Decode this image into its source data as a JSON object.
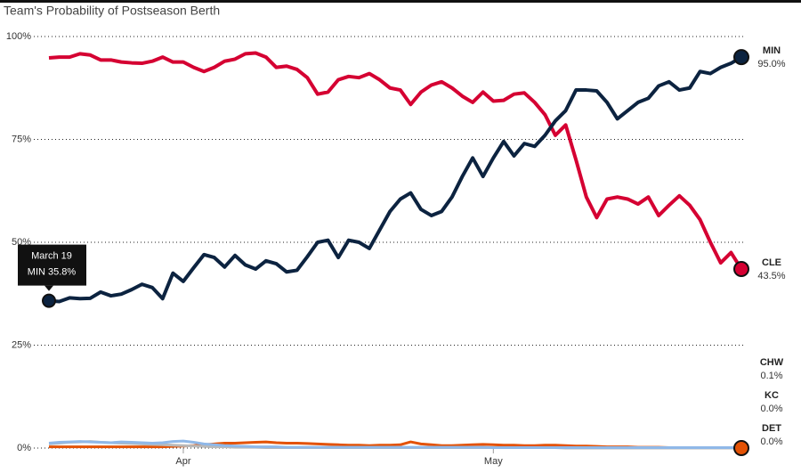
{
  "chart_data": {
    "type": "line",
    "title": "Team's Probability of Postseason Berth",
    "categories": [
      null,
      null,
      null,
      null,
      null,
      null,
      null,
      null,
      null,
      null,
      null,
      null,
      null,
      "Apr",
      null,
      null,
      null,
      null,
      null,
      null,
      null,
      null,
      null,
      null,
      null,
      null,
      null,
      null,
      null,
      null,
      null,
      null,
      null,
      null,
      null,
      null,
      null,
      null,
      null,
      null,
      null,
      null,
      null,
      "May",
      null,
      null,
      null,
      null,
      null,
      null,
      null,
      null,
      null,
      null,
      null,
      null,
      null,
      null,
      null,
      null,
      null,
      null,
      null,
      null,
      null,
      null,
      null,
      null
    ],
    "ylim": [
      0,
      100
    ],
    "yticks": [
      {
        "value": 0,
        "label": "0%"
      },
      {
        "value": 25,
        "label": "25%"
      },
      {
        "value": 50,
        "label": "50%"
      },
      {
        "value": 75,
        "label": "75%"
      },
      {
        "value": 100,
        "label": "100%"
      }
    ],
    "grid": true,
    "tooltip": {
      "title": "March 19",
      "text": "MIN 35.8%"
    },
    "series": [
      {
        "name": "MIN",
        "color": "#0c2340",
        "end_label": "95.0%",
        "marker": true,
        "values": [
          35.8,
          35.6,
          36.5,
          36.3,
          36.4,
          37.9,
          37.0,
          37.4,
          38.5,
          39.8,
          39.0,
          36.3,
          42.5,
          40.5,
          43.8,
          47.0,
          46.3,
          44.0,
          46.8,
          44.5,
          43.5,
          45.5,
          44.8,
          42.8,
          43.2,
          46.5,
          50.0,
          50.5,
          46.3,
          50.5,
          50.0,
          48.5,
          53.0,
          57.5,
          60.5,
          62.0,
          58.0,
          56.5,
          57.5,
          61.0,
          66.0,
          70.5,
          66.0,
          70.5,
          74.5,
          71.0,
          74.0,
          73.3,
          76.0,
          79.5,
          82.0,
          87.0,
          87.0,
          86.8,
          84.0,
          80.0,
          82.0,
          84.0,
          85.0,
          88.0,
          89.0,
          87.0,
          87.5,
          91.5,
          91.0,
          92.5,
          93.5,
          95.0
        ]
      },
      {
        "name": "CLE",
        "color": "#d50032",
        "end_label": "43.5%",
        "marker": true,
        "values": [
          94.8,
          95.0,
          95.0,
          95.8,
          95.5,
          94.3,
          94.3,
          93.8,
          93.6,
          93.5,
          94.0,
          95.0,
          93.8,
          93.8,
          92.5,
          91.5,
          92.5,
          94.0,
          94.5,
          95.8,
          96.0,
          95.0,
          92.5,
          92.8,
          92.0,
          90.0,
          86.0,
          86.5,
          89.5,
          90.3,
          90.0,
          91.0,
          89.5,
          87.5,
          87.0,
          83.5,
          86.5,
          88.2,
          89.0,
          87.5,
          85.5,
          84.0,
          86.5,
          84.3,
          84.5,
          86.0,
          86.3,
          84.0,
          81.0,
          76.0,
          78.5,
          70.0,
          61.0,
          56.0,
          60.5,
          61.0,
          60.5,
          59.3,
          61.0,
          56.5,
          59.0,
          61.3,
          59.0,
          55.5,
          50.0,
          45.0,
          47.5,
          43.5
        ]
      },
      {
        "name": "CHW",
        "color": "#8fb8e8",
        "end_label": "0.1%",
        "marker": false,
        "values": [
          1.2,
          1.4,
          1.5,
          1.6,
          1.5,
          1.4,
          1.3,
          1.5,
          1.4,
          1.3,
          1.2,
          1.3,
          1.6,
          1.7,
          1.4,
          1.0,
          0.8,
          0.6,
          0.5,
          0.4,
          0.3,
          0.3,
          0.3,
          0.2,
          0.2,
          0.2,
          0.2,
          0.2,
          0.2,
          0.2,
          0.2,
          0.2,
          0.2,
          0.2,
          0.2,
          0.2,
          0.2,
          0.2,
          0.2,
          0.2,
          0.2,
          0.2,
          0.2,
          0.1,
          0.1,
          0.1,
          0.1,
          0.1,
          0.1,
          0.1,
          0.1,
          0.1,
          0.1,
          0.1,
          0.1,
          0.1,
          0.1,
          0.1,
          0.1,
          0.1,
          0.1,
          0.1,
          0.1,
          0.1,
          0.1,
          0.1,
          0.1,
          0.1
        ]
      },
      {
        "name": "KC",
        "color": "#b9b9b9",
        "end_label": "0.0%",
        "marker": false,
        "values": [
          1.0,
          1.2,
          1.4,
          1.5,
          1.6,
          1.4,
          1.3,
          1.2,
          1.1,
          1.0,
          0.9,
          0.8,
          0.7,
          0.6,
          0.5,
          0.4,
          0.3,
          0.3,
          0.2,
          0.2,
          0.2,
          0.1,
          0.1,
          0.1,
          0.1,
          0.1,
          0.1,
          0.1,
          0.1,
          0.1,
          0.1,
          0.1,
          0.1,
          0.1,
          0.1,
          0.1,
          0.1,
          0.1,
          0.1,
          0.1,
          0.1,
          0.1,
          0.1,
          0.1,
          0.1,
          0.1,
          0.1,
          0.1,
          0.1,
          0.1,
          0.0,
          0.0,
          0.0,
          0.0,
          0.0,
          0.0,
          0.0,
          0.0,
          0.0,
          0.0,
          0.0,
          0.0,
          0.0,
          0.0,
          0.0,
          0.0,
          0.0,
          0.0
        ]
      },
      {
        "name": "DET",
        "color": "#e35205",
        "end_label": "0.0%",
        "marker": true,
        "values": [
          0.3,
          0.3,
          0.3,
          0.3,
          0.3,
          0.3,
          0.3,
          0.3,
          0.3,
          0.3,
          0.3,
          0.3,
          0.4,
          0.5,
          0.6,
          0.8,
          1.0,
          1.2,
          1.2,
          1.3,
          1.4,
          1.5,
          1.3,
          1.2,
          1.2,
          1.1,
          1.0,
          0.9,
          0.8,
          0.7,
          0.7,
          0.6,
          0.7,
          0.7,
          0.8,
          1.5,
          1.0,
          0.8,
          0.6,
          0.6,
          0.7,
          0.8,
          0.9,
          0.8,
          0.7,
          0.7,
          0.6,
          0.6,
          0.7,
          0.7,
          0.6,
          0.5,
          0.5,
          0.4,
          0.3,
          0.3,
          0.3,
          0.2,
          0.2,
          0.2,
          0.1,
          0.1,
          0.1,
          0.1,
          0.1,
          0.0,
          0.0,
          0.0
        ]
      }
    ]
  }
}
